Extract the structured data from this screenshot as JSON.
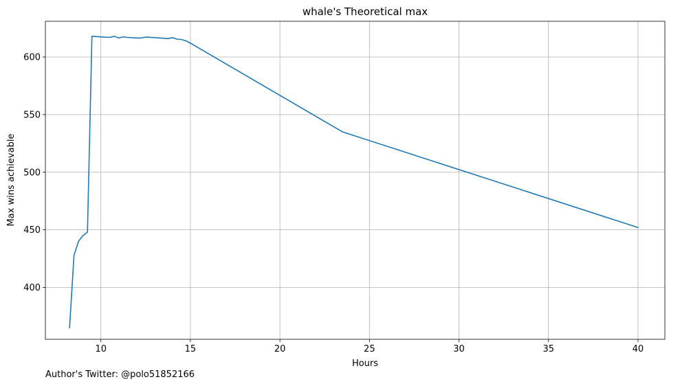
{
  "chart_data": {
    "type": "line",
    "title": "whale's Theoretical max",
    "xlabel": "Hours",
    "ylabel": "Max wins achievable",
    "xlim": [
      6.9,
      41.5
    ],
    "ylim": [
      355,
      631
    ],
    "xticks": [
      10,
      15,
      20,
      25,
      30,
      35,
      40
    ],
    "yticks": [
      400,
      450,
      500,
      550,
      600
    ],
    "grid": true,
    "series": [
      {
        "color": "#1f77b4",
        "points": [
          [
            8.25,
            365
          ],
          [
            8.5,
            428
          ],
          [
            8.75,
            440
          ],
          [
            9.0,
            445
          ],
          [
            9.25,
            448
          ],
          [
            9.5,
            618
          ],
          [
            10.0,
            617.5
          ],
          [
            10.5,
            617
          ],
          [
            10.75,
            618
          ],
          [
            11.0,
            616.5
          ],
          [
            11.25,
            617.5
          ],
          [
            11.5,
            617
          ],
          [
            12.0,
            616.5
          ],
          [
            12.25,
            616.5
          ],
          [
            12.5,
            617.3
          ],
          [
            13.0,
            616.8
          ],
          [
            13.5,
            616.3
          ],
          [
            13.75,
            616
          ],
          [
            14.0,
            616.8
          ],
          [
            14.25,
            615.5
          ],
          [
            14.5,
            615.2
          ],
          [
            14.75,
            614
          ],
          [
            15.0,
            612
          ],
          [
            23.5,
            535
          ],
          [
            40.0,
            452
          ]
        ]
      }
    ]
  },
  "footer": {
    "author_note": "Author's Twitter: @polo51852166"
  }
}
